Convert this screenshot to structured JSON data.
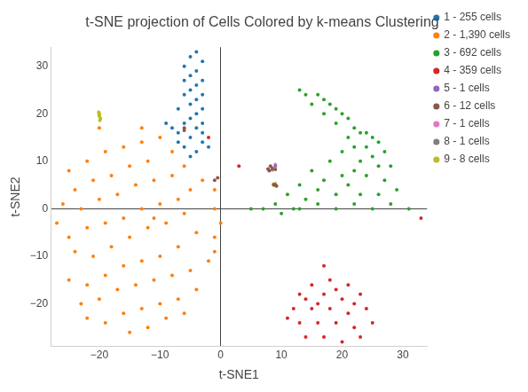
{
  "chart_data": {
    "type": "scatter",
    "title": "t-SNE projection of Cells Colored by k-means Clustering",
    "x_label": "t-SNE1",
    "y_label": "t-SNE2",
    "xlim": [
      -28,
      34
    ],
    "ylim": [
      -29,
      34
    ],
    "xticks": [
      {
        "value": -20,
        "label": "−20"
      },
      {
        "value": -10,
        "label": "−10"
      },
      0,
      10,
      20,
      30
    ],
    "yticks": [
      {
        "value": -20,
        "label": "−20"
      },
      {
        "value": -10,
        "label": "−10"
      },
      0,
      10,
      20,
      30
    ],
    "grid": false,
    "legend": "right",
    "marker": "circle",
    "series": [
      {
        "name": "1 - 255 cells",
        "color": "#1f77b4",
        "values": [
          [
            -5,
            32
          ],
          [
            -4,
            33
          ],
          [
            -3,
            31
          ],
          [
            -6,
            30
          ],
          [
            -4,
            29
          ],
          [
            -5,
            28
          ],
          [
            -3,
            27
          ],
          [
            -6,
            27
          ],
          [
            -4,
            26
          ],
          [
            -5,
            25
          ],
          [
            -3,
            24
          ],
          [
            -6,
            24
          ],
          [
            -4,
            23
          ],
          [
            -5,
            22
          ],
          [
            -3,
            21
          ],
          [
            -7,
            21
          ],
          [
            -4,
            20
          ],
          [
            -5,
            19
          ],
          [
            -6,
            18
          ],
          [
            -3,
            18
          ],
          [
            -4,
            17
          ],
          [
            -7,
            16
          ],
          [
            -5,
            15
          ],
          [
            -3,
            14
          ],
          [
            -6,
            13
          ],
          [
            -4,
            12
          ],
          [
            -8,
            17
          ],
          [
            -9,
            18
          ],
          [
            -2,
            13
          ],
          [
            -5,
            11
          ],
          [
            -7,
            14
          ],
          [
            -3,
            16
          ]
        ]
      },
      {
        "name": "2 - 1,390 cells",
        "color": "#ff7f0e",
        "values": [
          [
            -25,
            8
          ],
          [
            -22,
            10
          ],
          [
            -19,
            12
          ],
          [
            -16,
            13
          ],
          [
            -13,
            14
          ],
          [
            -10,
            15
          ],
          [
            -8,
            12
          ],
          [
            -12,
            10
          ],
          [
            -15,
            9
          ],
          [
            -18,
            7
          ],
          [
            -21,
            6
          ],
          [
            -24,
            4
          ],
          [
            -26,
            1
          ],
          [
            -23,
            0
          ],
          [
            -20,
            2
          ],
          [
            -17,
            3
          ],
          [
            -14,
            5
          ],
          [
            -11,
            6
          ],
          [
            -8,
            7
          ],
          [
            -6,
            9
          ],
          [
            -5,
            4
          ],
          [
            -7,
            2
          ],
          [
            -10,
            1
          ],
          [
            -13,
            0
          ],
          [
            -16,
            -2
          ],
          [
            -19,
            -3
          ],
          [
            -22,
            -4
          ],
          [
            -25,
            -6
          ],
          [
            -27,
            -3
          ],
          [
            -24,
            -9
          ],
          [
            -21,
            -10
          ],
          [
            -18,
            -8
          ],
          [
            -15,
            -6
          ],
          [
            -12,
            -4
          ],
          [
            -9,
            -3
          ],
          [
            -6,
            -1
          ],
          [
            -4,
            -5
          ],
          [
            -7,
            -8
          ],
          [
            -10,
            -10
          ],
          [
            -13,
            -11
          ],
          [
            -16,
            -12
          ],
          [
            -19,
            -14
          ],
          [
            -22,
            -16
          ],
          [
            -25,
            -15
          ],
          [
            -23,
            -20
          ],
          [
            -20,
            -19
          ],
          [
            -17,
            -17
          ],
          [
            -14,
            -16
          ],
          [
            -11,
            -15
          ],
          [
            -8,
            -14
          ],
          [
            -5,
            -13
          ],
          [
            -4,
            -17
          ],
          [
            -7,
            -19
          ],
          [
            -10,
            -20
          ],
          [
            -13,
            -21
          ],
          [
            -16,
            -22
          ],
          [
            -19,
            -24
          ],
          [
            -22,
            -23
          ],
          [
            -15,
            -26
          ],
          [
            -12,
            -25
          ],
          [
            -9,
            -23
          ],
          [
            -6,
            -22
          ],
          [
            -1,
            4
          ],
          [
            -1,
            0
          ],
          [
            0,
            -3
          ],
          [
            -1,
            -6
          ],
          [
            -1,
            -9
          ],
          [
            -2,
            -11
          ],
          [
            -20,
            17
          ],
          [
            -13,
            17
          ],
          [
            -3,
            6
          ],
          [
            -11,
            -2
          ]
        ]
      },
      {
        "name": "3 - 692 cells",
        "color": "#2ca02c",
        "values": [
          [
            13,
            25
          ],
          [
            14,
            24
          ],
          [
            16,
            24
          ],
          [
            17,
            23
          ],
          [
            15,
            22
          ],
          [
            18,
            22
          ],
          [
            19,
            21
          ],
          [
            17,
            20
          ],
          [
            20,
            20
          ],
          [
            21,
            19
          ],
          [
            19,
            18
          ],
          [
            22,
            17
          ],
          [
            23,
            16
          ],
          [
            21,
            15
          ],
          [
            24,
            16
          ],
          [
            25,
            15
          ],
          [
            26,
            14
          ],
          [
            24,
            13
          ],
          [
            27,
            12
          ],
          [
            25,
            11
          ],
          [
            23,
            10
          ],
          [
            26,
            9
          ],
          [
            28,
            9
          ],
          [
            22,
            8
          ],
          [
            24,
            7
          ],
          [
            20,
            7
          ],
          [
            21,
            5
          ],
          [
            27,
            6
          ],
          [
            29,
            4
          ],
          [
            26,
            3
          ],
          [
            23,
            3
          ],
          [
            19,
            3
          ],
          [
            16,
            4
          ],
          [
            13,
            5
          ],
          [
            11,
            3
          ],
          [
            9,
            1
          ],
          [
            7,
            0
          ],
          [
            10,
            -1
          ],
          [
            13,
            0
          ],
          [
            16,
            1
          ],
          [
            19,
            0
          ],
          [
            22,
            1
          ],
          [
            25,
            0
          ],
          [
            28,
            1
          ],
          [
            31,
            0
          ],
          [
            14,
            2
          ],
          [
            17,
            6
          ],
          [
            18,
            10
          ],
          [
            20,
            12
          ],
          [
            22,
            13
          ],
          [
            15,
            8
          ],
          [
            12,
            0
          ],
          [
            5,
            0
          ]
        ]
      },
      {
        "name": "4 - 359 cells",
        "color": "#d62728",
        "values": [
          [
            18,
            -15
          ],
          [
            15,
            -16
          ],
          [
            21,
            -16
          ],
          [
            13,
            -18
          ],
          [
            17,
            -18
          ],
          [
            20,
            -19
          ],
          [
            23,
            -18
          ],
          [
            12,
            -21
          ],
          [
            15,
            -21
          ],
          [
            18,
            -21
          ],
          [
            21,
            -22
          ],
          [
            24,
            -21
          ],
          [
            13,
            -24
          ],
          [
            16,
            -24
          ],
          [
            19,
            -24
          ],
          [
            22,
            -25
          ],
          [
            25,
            -24
          ],
          [
            14,
            -27
          ],
          [
            17,
            -27
          ],
          [
            20,
            -28
          ],
          [
            23,
            -27
          ],
          [
            16,
            -20
          ],
          [
            19,
            -17
          ],
          [
            11,
            -23
          ],
          [
            17,
            -12
          ],
          [
            -2,
            15
          ],
          [
            3,
            9
          ],
          [
            33,
            -2
          ],
          [
            22,
            -20
          ],
          [
            14,
            -19
          ]
        ]
      },
      {
        "name": "5 - 1 cells",
        "color": "#9467bd",
        "values": [
          [
            9,
            9
          ]
        ]
      },
      {
        "name": "6 - 12 cells",
        "color": "#8c564b",
        "values": [
          [
            8,
            8
          ],
          [
            8.5,
            8.5
          ],
          [
            9,
            8.3
          ],
          [
            8.2,
            9
          ],
          [
            7.8,
            8.4
          ],
          [
            9,
            5
          ],
          [
            9.2,
            4.8
          ],
          [
            8.7,
            5.1
          ],
          [
            -6,
            17
          ],
          [
            -6,
            16.5
          ],
          [
            -0.5,
            6.5
          ],
          [
            -1,
            6
          ]
        ]
      },
      {
        "name": "7 - 1 cells",
        "color": "#e377c2",
        "values": [
          [
            9,
            9.3
          ]
        ]
      },
      {
        "name": "8 - 1 cells",
        "color": "#7f7f7f",
        "values": [
          [
            8.5,
            8.2
          ]
        ]
      },
      {
        "name": "9 - 8 cells",
        "color": "#bcbd22",
        "values": [
          [
            -20,
            20
          ],
          [
            -20,
            19.5
          ],
          [
            -19.8,
            19
          ],
          [
            -20.1,
            20.3
          ],
          [
            -19.9,
            18.6
          ],
          [
            -20,
            19.8
          ],
          [
            9,
            5.3
          ],
          [
            8.8,
            4.9
          ]
        ]
      }
    ]
  }
}
